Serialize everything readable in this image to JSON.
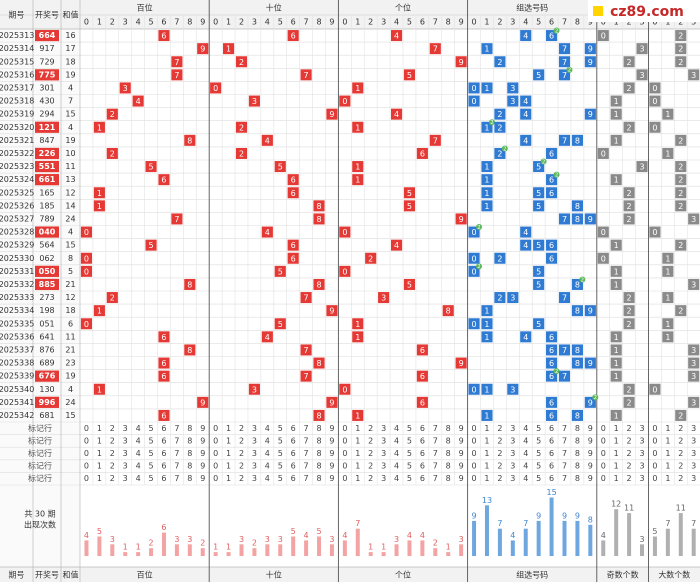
{
  "logo": "cz89.com",
  "header": {
    "issue": "期号",
    "number": "开奖号",
    "sum": "和值",
    "groups": [
      "百位",
      "十位",
      "个位",
      "组选号码",
      "奇数个数",
      "大数个数"
    ]
  },
  "digits": [
    "0",
    "1",
    "2",
    "3",
    "4",
    "5",
    "6",
    "7",
    "8",
    "9"
  ],
  "rows": [
    {
      "issue": "2025313",
      "number": "664",
      "sum": 16
    },
    {
      "issue": "2025314",
      "number": "917",
      "sum": 17
    },
    {
      "issue": "2025315",
      "number": "729",
      "sum": 18
    },
    {
      "issue": "2025316",
      "number": "775",
      "sum": 19
    },
    {
      "issue": "2025317",
      "number": "301",
      "sum": 4
    },
    {
      "issue": "2025318",
      "number": "430",
      "sum": 7
    },
    {
      "issue": "2025319",
      "number": "294",
      "sum": 15
    },
    {
      "issue": "2025320",
      "number": "121",
      "sum": 4
    },
    {
      "issue": "2025321",
      "number": "847",
      "sum": 19
    },
    {
      "issue": "2025322",
      "number": "226",
      "sum": 10
    },
    {
      "issue": "2025323",
      "number": "551",
      "sum": 11
    },
    {
      "issue": "2025324",
      "number": "661",
      "sum": 13
    },
    {
      "issue": "2025325",
      "number": "165",
      "sum": 12
    },
    {
      "issue": "2025326",
      "number": "185",
      "sum": 14
    },
    {
      "issue": "2025327",
      "number": "789",
      "sum": 24
    },
    {
      "issue": "2025328",
      "number": "040",
      "sum": 4
    },
    {
      "issue": "2025329",
      "number": "564",
      "sum": 15
    },
    {
      "issue": "2025330",
      "number": "062",
      "sum": 8
    },
    {
      "issue": "2025331",
      "number": "050",
      "sum": 5
    },
    {
      "issue": "2025332",
      "number": "885",
      "sum": 21
    },
    {
      "issue": "2025333",
      "number": "273",
      "sum": 12
    },
    {
      "issue": "2025334",
      "number": "198",
      "sum": 18
    },
    {
      "issue": "2025335",
      "number": "051",
      "sum": 6
    },
    {
      "issue": "2025336",
      "number": "641",
      "sum": 11
    },
    {
      "issue": "2025337",
      "number": "876",
      "sum": 21
    },
    {
      "issue": "2025338",
      "number": "689",
      "sum": 23
    },
    {
      "issue": "2025339",
      "number": "676",
      "sum": 19
    },
    {
      "issue": "2025340",
      "number": "130",
      "sum": 4
    },
    {
      "issue": "2025341",
      "number": "996",
      "sum": 24
    },
    {
      "issue": "2025342",
      "number": "681",
      "sum": 15
    }
  ],
  "repeat_label": "2",
  "mark_rows": [
    "标记行",
    "标记行",
    "标记行",
    "标记行",
    "标记行"
  ],
  "stats": {
    "title": [
      "共 30 期",
      "出现次数"
    ],
    "counts": [
      [
        4,
        5,
        3,
        1,
        1,
        2,
        6,
        3,
        3,
        2
      ],
      [
        1,
        1,
        3,
        2,
        3,
        3,
        5,
        4,
        5,
        3
      ],
      [
        4,
        7,
        1,
        1,
        3,
        4,
        4,
        2,
        1,
        3
      ],
      [
        9,
        13,
        7,
        4,
        7,
        9,
        15,
        9,
        9,
        8
      ],
      [
        4,
        12,
        11,
        3
      ],
      [
        5,
        7,
        11,
        7
      ]
    ]
  }
}
